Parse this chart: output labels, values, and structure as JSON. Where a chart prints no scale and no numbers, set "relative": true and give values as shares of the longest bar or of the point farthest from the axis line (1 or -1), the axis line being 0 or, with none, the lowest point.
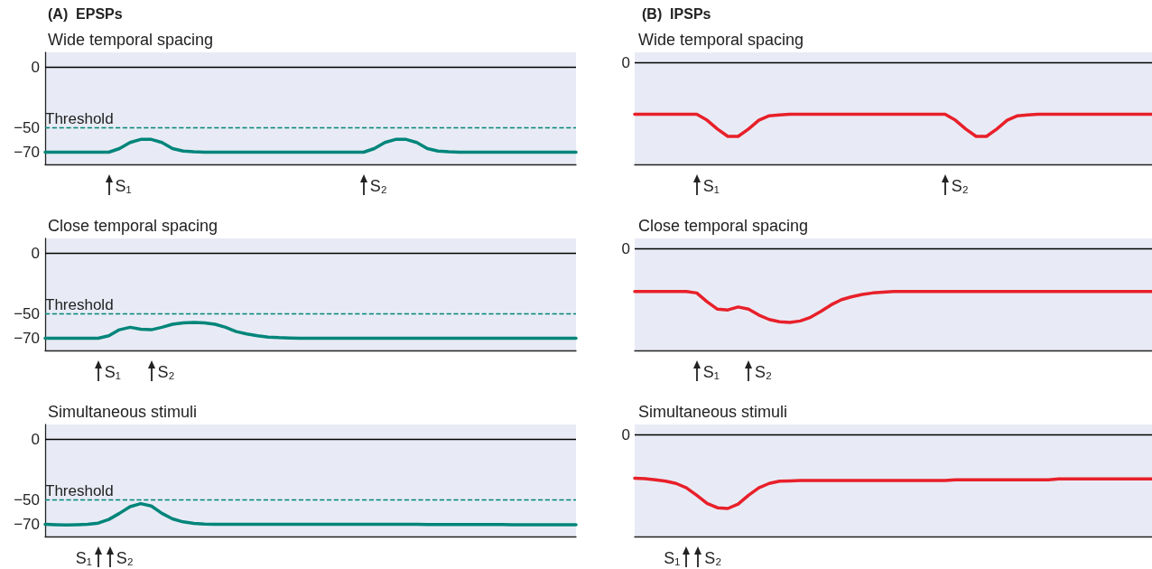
{
  "chart_data": [
    {
      "type": "line",
      "title": "(A)  EPSPs",
      "subtitle": "Wide temporal spacing",
      "color": "#00857a",
      "marker": "none",
      "line_style": "solid",
      "tick_labels": "y",
      "ylim": [
        -80,
        12
      ],
      "yticks": [
        0,
        -50,
        -70
      ],
      "categories": [
        null,
        null,
        null,
        null,
        null,
        null,
        null,
        null,
        null,
        null,
        null,
        null,
        null,
        null,
        null,
        null,
        null,
        null,
        null,
        null,
        null,
        null,
        null,
        null,
        null,
        null,
        null,
        null,
        null,
        null,
        null,
        null,
        null,
        null,
        null,
        null,
        null,
        null,
        null,
        null,
        null,
        null,
        null,
        null,
        null,
        null,
        null,
        null,
        null,
        null,
        null
      ],
      "values": [
        -70,
        -70,
        -70,
        -70,
        -70,
        -70,
        -70,
        -67,
        -62,
        -59.5,
        -59.5,
        -62,
        -67,
        -69,
        -69.7,
        -70,
        -70,
        -70,
        -70,
        -70,
        -70,
        -70,
        -70,
        -70,
        -70,
        -70,
        -70,
        -70,
        -70,
        -70,
        -70,
        -67,
        -62,
        -59.5,
        -59.5,
        -62,
        -67,
        -69,
        -69.7,
        -70,
        -70,
        -70,
        -70,
        -70,
        -70,
        -70,
        -70,
        -70,
        -70,
        -70,
        -70
      ],
      "ref_lines": [
        {
          "axis": "y",
          "value": 0,
          "label": null,
          "color": "#000000",
          "line_style": "solid"
        },
        {
          "axis": "y",
          "value": -50,
          "label": "Threshold",
          "color": "#00857a",
          "line_style": "dashed"
        }
      ],
      "annotations": [
        "S₁",
        "S₂"
      ]
    },
    {
      "type": "line",
      "title": "(B)  IPSPs",
      "subtitle": "Wide temporal spacing",
      "color": "#e8202a",
      "marker": "none",
      "line_style": "solid",
      "relative": true,
      "tick_labels": false,
      "categories": [
        null,
        null,
        null,
        null,
        null,
        null,
        null,
        null,
        null,
        null,
        null,
        null,
        null,
        null,
        null,
        null,
        null,
        null,
        null,
        null,
        null,
        null,
        null,
        null,
        null,
        null,
        null,
        null,
        null,
        null,
        null,
        null,
        null,
        null,
        null,
        null,
        null,
        null,
        null,
        null,
        null,
        null,
        null,
        null,
        null,
        null,
        null,
        null,
        null,
        null,
        null
      ],
      "values": [
        -0.7,
        -0.7,
        -0.7,
        -0.7,
        -0.7,
        -0.7,
        -0.7,
        -0.78,
        -0.9,
        -1,
        -1,
        -0.9,
        -0.78,
        -0.72,
        -0.71,
        -0.7,
        -0.7,
        -0.7,
        -0.7,
        -0.7,
        -0.7,
        -0.7,
        -0.7,
        -0.7,
        -0.7,
        -0.7,
        -0.7,
        -0.7,
        -0.7,
        -0.7,
        -0.7,
        -0.78,
        -0.9,
        -1,
        -1,
        -0.9,
        -0.78,
        -0.72,
        -0.71,
        -0.7,
        -0.7,
        -0.7,
        -0.7,
        -0.7,
        -0.7,
        -0.7,
        -0.7,
        -0.7,
        -0.7,
        -0.7,
        -0.7
      ],
      "ref_lines": [
        {
          "axis": "y",
          "value": 0,
          "label": "0",
          "color": "#000000",
          "line_style": "solid"
        }
      ],
      "annotations": [
        "S₁",
        "S₂"
      ]
    },
    {
      "type": "line",
      "subtitle": "Close temporal spacing",
      "color": "#00857a",
      "marker": "none",
      "line_style": "solid",
      "tick_labels": "y",
      "ylim": [
        -80,
        12
      ],
      "yticks": [
        0,
        -50,
        -70
      ],
      "categories": [
        null,
        null,
        null,
        null,
        null,
        null,
        null,
        null,
        null,
        null,
        null,
        null,
        null,
        null,
        null,
        null,
        null,
        null,
        null,
        null,
        null,
        null,
        null,
        null,
        null,
        null,
        null,
        null,
        null,
        null,
        null,
        null,
        null,
        null,
        null,
        null,
        null,
        null,
        null,
        null,
        null,
        null,
        null,
        null,
        null,
        null,
        null,
        null,
        null,
        null,
        null
      ],
      "values": [
        -70,
        -70,
        -70,
        -70,
        -70,
        -70,
        -68,
        -63,
        -61,
        -62.5,
        -63,
        -61,
        -58.5,
        -57.3,
        -57,
        -57.3,
        -58.5,
        -61,
        -64.5,
        -66.5,
        -68,
        -69,
        -69.5,
        -69.8,
        -70,
        -70,
        -70,
        -70,
        -70,
        -70,
        -70,
        -70,
        -70,
        -70,
        -70,
        -70,
        -70,
        -70,
        -70,
        -70,
        -70,
        -70,
        -70,
        -70,
        -70,
        -70,
        -70,
        -70,
        -70,
        -70,
        -70
      ],
      "ref_lines": [
        {
          "axis": "y",
          "value": 0,
          "label": null,
          "color": "#000000",
          "line_style": "solid"
        },
        {
          "axis": "y",
          "value": -50,
          "label": "Threshold",
          "color": "#00857a",
          "line_style": "dashed"
        }
      ],
      "annotations": [
        "S₁",
        "S₂"
      ]
    },
    {
      "type": "line",
      "subtitle": "Close temporal spacing",
      "color": "#e8202a",
      "marker": "none",
      "line_style": "solid",
      "relative": true,
      "tick_labels": false,
      "categories": [
        null,
        null,
        null,
        null,
        null,
        null,
        null,
        null,
        null,
        null,
        null,
        null,
        null,
        null,
        null,
        null,
        null,
        null,
        null,
        null,
        null,
        null,
        null,
        null,
        null,
        null,
        null,
        null,
        null,
        null,
        null,
        null,
        null,
        null,
        null,
        null,
        null,
        null,
        null,
        null,
        null,
        null,
        null,
        null,
        null,
        null,
        null,
        null,
        null,
        null,
        null
      ],
      "values": [
        -0.58,
        -0.58,
        -0.58,
        -0.58,
        -0.58,
        -0.58,
        -0.6,
        -0.72,
        -0.82,
        -0.83,
        -0.79,
        -0.82,
        -0.9,
        -0.96,
        -0.99,
        -1,
        -0.98,
        -0.93,
        -0.85,
        -0.76,
        -0.69,
        -0.65,
        -0.62,
        -0.6,
        -0.59,
        -0.58,
        -0.58,
        -0.58,
        -0.58,
        -0.58,
        -0.58,
        -0.58,
        -0.58,
        -0.58,
        -0.58,
        -0.58,
        -0.58,
        -0.58,
        -0.58,
        -0.58,
        -0.58,
        -0.58,
        -0.58,
        -0.58,
        -0.58,
        -0.58,
        -0.58,
        -0.58,
        -0.58,
        -0.58,
        -0.58
      ],
      "ref_lines": [
        {
          "axis": "y",
          "value": 0,
          "label": "0",
          "color": "#000000",
          "line_style": "solid"
        }
      ],
      "annotations": [
        "S₁",
        "S₂"
      ]
    },
    {
      "type": "line",
      "subtitle": "Simultaneous stimuli",
      "color": "#00857a",
      "marker": "none",
      "line_style": "solid",
      "tick_labels": "y",
      "ylim": [
        -80,
        12
      ],
      "yticks": [
        0,
        -50,
        -70
      ],
      "categories": [
        null,
        null,
        null,
        null,
        null,
        null,
        null,
        null,
        null,
        null,
        null,
        null,
        null,
        null,
        null,
        null,
        null,
        null,
        null,
        null,
        null,
        null,
        null,
        null,
        null,
        null,
        null,
        null,
        null,
        null,
        null,
        null,
        null,
        null,
        null,
        null,
        null,
        null,
        null,
        null,
        null,
        null,
        null,
        null,
        null,
        null,
        null,
        null,
        null,
        null,
        null
      ],
      "values": [
        -70,
        -70.3,
        -70.5,
        -70.3,
        -70,
        -69,
        -66,
        -61,
        -55.5,
        -53,
        -55,
        -61,
        -65.5,
        -68,
        -69.2,
        -69.8,
        -70,
        -70,
        -70,
        -70,
        -70,
        -70,
        -70,
        -70,
        -70,
        -70,
        -70,
        -70,
        -70,
        -70,
        -70,
        -70,
        -70,
        -70,
        -70,
        -70,
        -70.2,
        -70.2,
        -70.2,
        -70.2,
        -70.2,
        -70.2,
        -70.2,
        -70.2,
        -70.4,
        -70.4,
        -70.4,
        -70.4,
        -70.4,
        -70.4,
        -70.4
      ],
      "ref_lines": [
        {
          "axis": "y",
          "value": 0,
          "label": null,
          "color": "#000000",
          "line_style": "solid"
        },
        {
          "axis": "y",
          "value": -50,
          "label": "Threshold",
          "color": "#00857a",
          "line_style": "dashed"
        }
      ],
      "annotations": [
        "S₁",
        "S₂"
      ]
    },
    {
      "type": "line",
      "subtitle": "Simultaneous stimuli",
      "color": "#e8202a",
      "marker": "none",
      "line_style": "solid",
      "relative": true,
      "tick_labels": false,
      "categories": [
        null,
        null,
        null,
        null,
        null,
        null,
        null,
        null,
        null,
        null,
        null,
        null,
        null,
        null,
        null,
        null,
        null,
        null,
        null,
        null,
        null,
        null,
        null,
        null,
        null,
        null,
        null,
        null,
        null,
        null,
        null,
        null,
        null,
        null,
        null,
        null,
        null,
        null,
        null,
        null,
        null,
        null,
        null,
        null,
        null,
        null,
        null,
        null,
        null,
        null,
        null
      ],
      "values": [
        -0.59,
        -0.595,
        -0.61,
        -0.63,
        -0.66,
        -0.72,
        -0.82,
        -0.93,
        -0.99,
        -1,
        -0.94,
        -0.82,
        -0.72,
        -0.66,
        -0.63,
        -0.625,
        -0.62,
        -0.62,
        -0.62,
        -0.62,
        -0.62,
        -0.62,
        -0.62,
        -0.62,
        -0.62,
        -0.62,
        -0.62,
        -0.62,
        -0.62,
        -0.62,
        -0.62,
        -0.61,
        -0.61,
        -0.61,
        -0.61,
        -0.61,
        -0.61,
        -0.61,
        -0.61,
        -0.61,
        -0.61,
        -0.6,
        -0.6,
        -0.6,
        -0.6,
        -0.6,
        -0.6,
        -0.6,
        -0.6,
        -0.6,
        -0.6
      ],
      "ref_lines": [
        {
          "axis": "y",
          "value": 0,
          "label": "0",
          "color": "#000000",
          "line_style": "solid"
        }
      ],
      "annotations": [
        "S₁",
        "S₂"
      ]
    }
  ]
}
